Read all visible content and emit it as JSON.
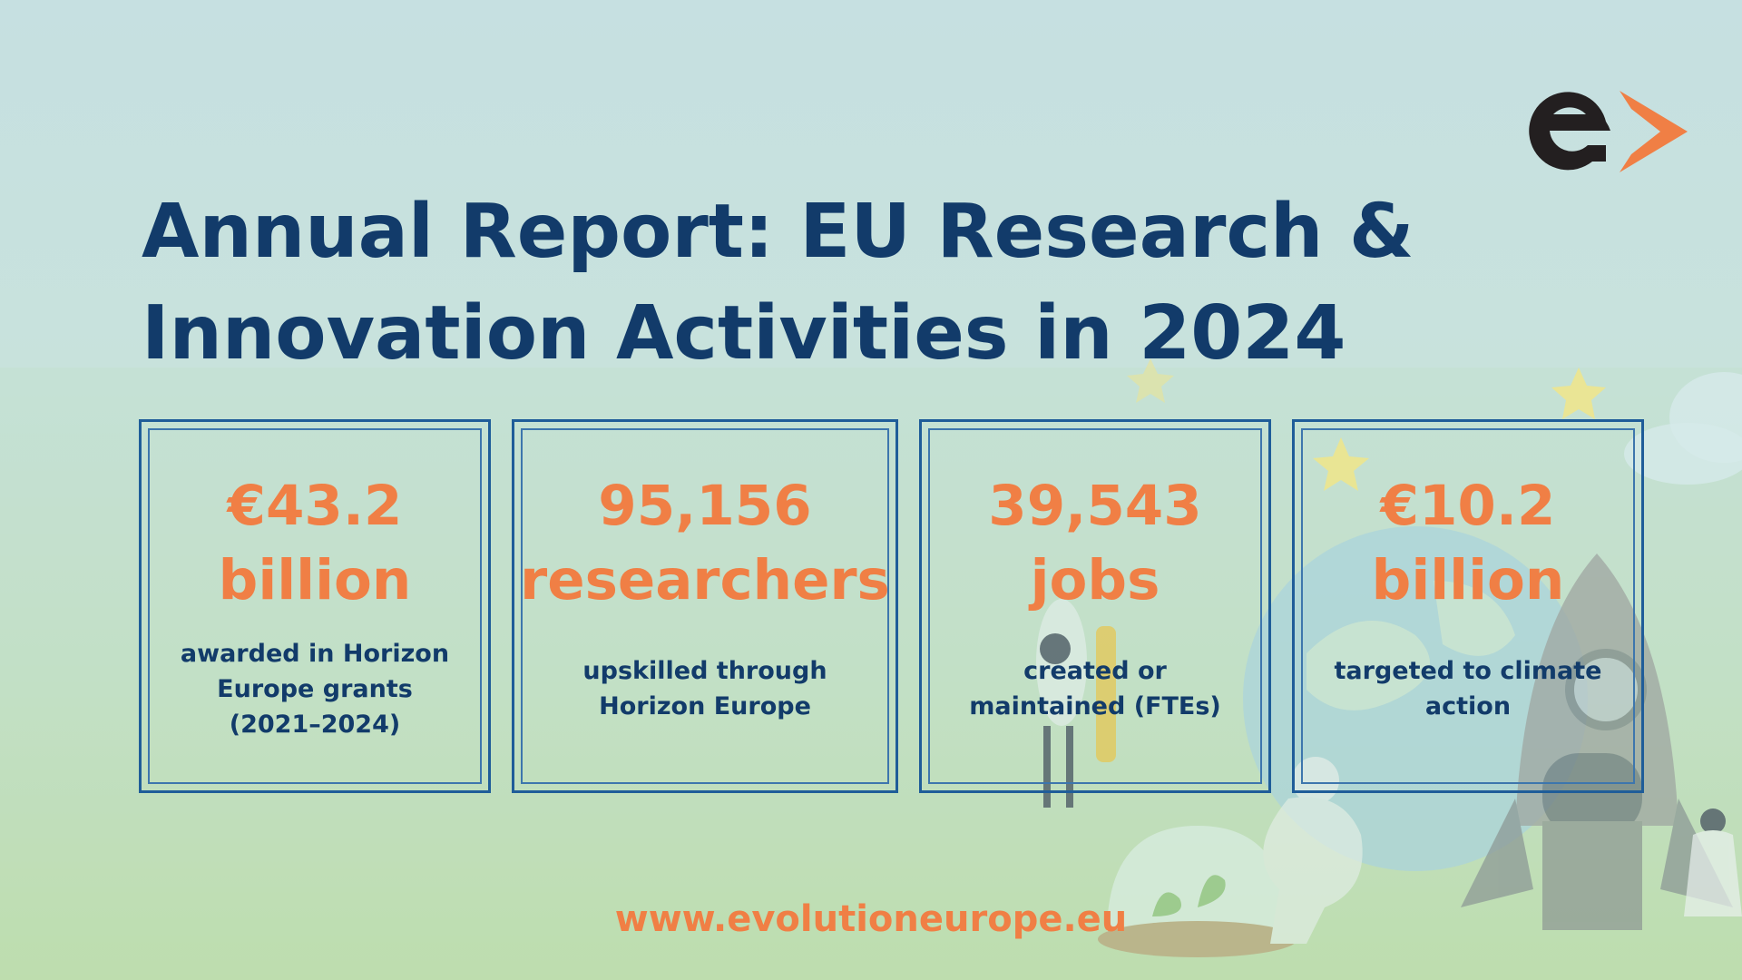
{
  "title": "Annual Report: EU Research & Innovation Activities in 2024",
  "cards": [
    {
      "value": "€43.2",
      "unit": "billion",
      "description": "awarded in Horizon Europe grants (2021–2024)"
    },
    {
      "value": "95,156",
      "unit": "researchers",
      "description": "upskilled through Horizon Europe"
    },
    {
      "value": "39,543",
      "unit": "jobs",
      "description": "created or maintained (FTEs)"
    },
    {
      "value": "€10.2",
      "unit": "billion",
      "description": "targeted to climate action"
    }
  ],
  "footer_url": "www.evolutioneurope.eu",
  "colors": {
    "title": "#123b6a",
    "accent": "#f07f45",
    "border": "#1f5d99",
    "logo_dark": "#231f20"
  },
  "icons": [
    "evolution-europe-logo",
    "star-icon",
    "rocket-illustration",
    "scientist-illustration",
    "globe-illustration"
  ]
}
